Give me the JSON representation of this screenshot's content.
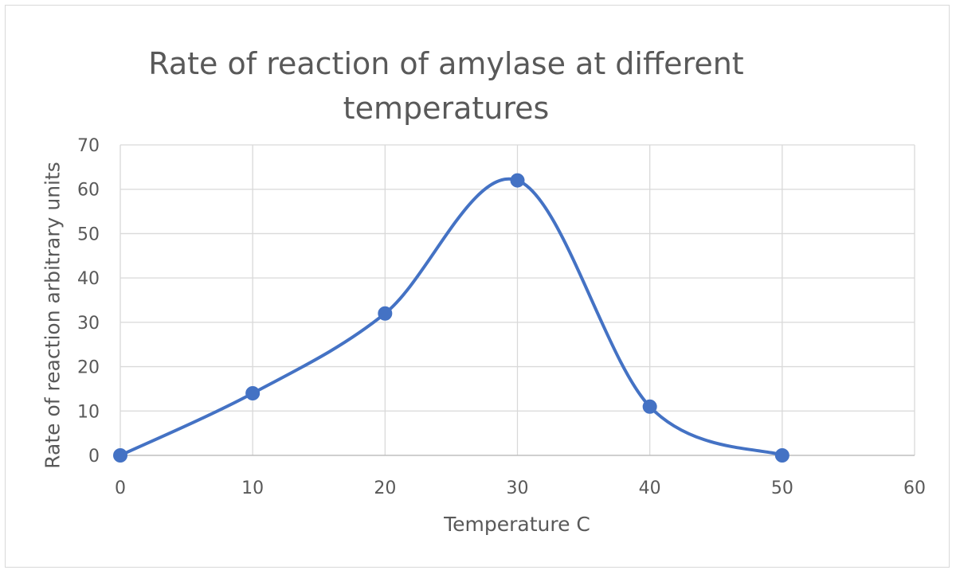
{
  "chart_data": {
    "type": "scatter",
    "title": "Rate of reaction of amylase at different temperatures",
    "xlabel": "Temperature C",
    "ylabel": "Rate of reaction arbitrary units",
    "xlim": [
      0,
      60
    ],
    "ylim": [
      0,
      70
    ],
    "x_ticks": [
      0,
      10,
      20,
      30,
      40,
      50,
      60
    ],
    "y_ticks": [
      0,
      10,
      20,
      30,
      40,
      50,
      60,
      70
    ],
    "grid": true,
    "smoothed_line": true,
    "series": [
      {
        "color": "#4472c4",
        "points": [
          {
            "x": 0,
            "y": 0
          },
          {
            "x": 10,
            "y": 14
          },
          {
            "x": 20,
            "y": 32
          },
          {
            "x": 30,
            "y": 62
          },
          {
            "x": 40,
            "y": 11
          },
          {
            "x": 50,
            "y": 0
          }
        ]
      }
    ]
  }
}
